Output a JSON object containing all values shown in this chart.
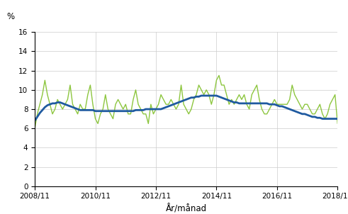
{
  "ylabel": "%",
  "xlabel": "År/månad",
  "ylim": [
    0,
    16
  ],
  "yticks": [
    0,
    2,
    4,
    6,
    8,
    10,
    12,
    14,
    16
  ],
  "xtick_labels": [
    "2008/11",
    "2010/11",
    "2012/11",
    "2014/11",
    "2016/11",
    "2018/11"
  ],
  "raw_color": "#8dc63f",
  "trend_color": "#1f5aa0",
  "raw_linewidth": 1.0,
  "trend_linewidth": 2.0,
  "raw": [
    6.0,
    7.5,
    8.5,
    9.5,
    11.0,
    9.5,
    8.5,
    7.5,
    8.0,
    9.0,
    8.5,
    8.0,
    8.5,
    9.0,
    10.5,
    8.5,
    8.0,
    7.5,
    8.5,
    8.0,
    8.0,
    9.5,
    10.5,
    8.5,
    7.0,
    6.5,
    7.5,
    8.0,
    9.5,
    8.0,
    7.5,
    7.0,
    8.5,
    9.0,
    8.5,
    8.0,
    8.5,
    7.5,
    7.5,
    9.0,
    10.0,
    8.5,
    8.0,
    7.5,
    7.5,
    6.5,
    8.5,
    7.5,
    8.0,
    8.5,
    9.5,
    9.0,
    8.5,
    8.5,
    9.0,
    8.5,
    8.0,
    8.5,
    10.5,
    8.5,
    8.0,
    7.5,
    8.0,
    9.0,
    9.5,
    10.5,
    10.0,
    9.5,
    10.0,
    9.5,
    8.5,
    9.5,
    11.0,
    11.5,
    10.5,
    10.5,
    9.5,
    8.5,
    9.0,
    8.5,
    9.0,
    9.5,
    9.0,
    9.5,
    8.5,
    8.0,
    9.5,
    10.0,
    10.5,
    9.0,
    8.0,
    7.5,
    7.5,
    8.0,
    8.5,
    9.0,
    8.5,
    8.5,
    8.5,
    8.5,
    8.5,
    9.0,
    10.5,
    9.5,
    9.0,
    8.5,
    8.0,
    8.5,
    8.5,
    8.0,
    7.5,
    7.5,
    8.0,
    8.5,
    7.5,
    7.0,
    7.5,
    8.5,
    9.0,
    9.5,
    6.5,
    6.5
  ],
  "trend": [
    6.8,
    7.2,
    7.6,
    7.9,
    8.2,
    8.4,
    8.5,
    8.6,
    8.6,
    8.7,
    8.7,
    8.6,
    8.5,
    8.4,
    8.3,
    8.2,
    8.1,
    8.0,
    7.9,
    7.9,
    7.9,
    7.9,
    7.9,
    7.9,
    7.8,
    7.8,
    7.8,
    7.8,
    7.8,
    7.8,
    7.8,
    7.8,
    7.8,
    7.8,
    7.8,
    7.8,
    7.8,
    7.8,
    7.8,
    7.8,
    7.9,
    7.9,
    7.9,
    7.9,
    8.0,
    8.0,
    8.0,
    8.0,
    8.0,
    8.0,
    8.0,
    8.1,
    8.2,
    8.3,
    8.4,
    8.5,
    8.6,
    8.7,
    8.8,
    8.9,
    9.0,
    9.1,
    9.2,
    9.2,
    9.3,
    9.3,
    9.4,
    9.4,
    9.4,
    9.4,
    9.4,
    9.4,
    9.4,
    9.3,
    9.2,
    9.1,
    9.0,
    8.9,
    8.8,
    8.7,
    8.7,
    8.6,
    8.6,
    8.6,
    8.6,
    8.6,
    8.6,
    8.6,
    8.6,
    8.6,
    8.6,
    8.6,
    8.6,
    8.5,
    8.5,
    8.5,
    8.4,
    8.3,
    8.3,
    8.2,
    8.1,
    8.0,
    7.9,
    7.8,
    7.7,
    7.6,
    7.5,
    7.5,
    7.4,
    7.3,
    7.2,
    7.2,
    7.1,
    7.1,
    7.0,
    7.0,
    7.0,
    7.0,
    7.0,
    7.0,
    7.0,
    7.0
  ]
}
